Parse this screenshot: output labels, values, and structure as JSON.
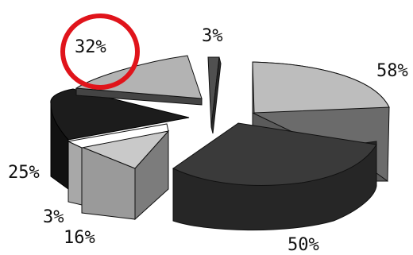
{
  "chart_data": {
    "type": "pie",
    "style": "3d-exploded",
    "slices": [
      {
        "label": "58%",
        "color": "#bdbdbd"
      },
      {
        "label": "50%",
        "color": "#3a3a3a"
      },
      {
        "label": "16%",
        "color": "#9a9a9a"
      },
      {
        "label": "3%",
        "color": "#ffffff",
        "position": "bottom-left"
      },
      {
        "label": "25%",
        "color": "#1c1c1c"
      },
      {
        "label": "32%",
        "color": "#b3b3b3",
        "highlighted": true
      },
      {
        "label": "3%",
        "color": "#505050",
        "position": "top"
      }
    ],
    "highlight_color": "#e0141b",
    "grid": false,
    "legend": "none"
  }
}
